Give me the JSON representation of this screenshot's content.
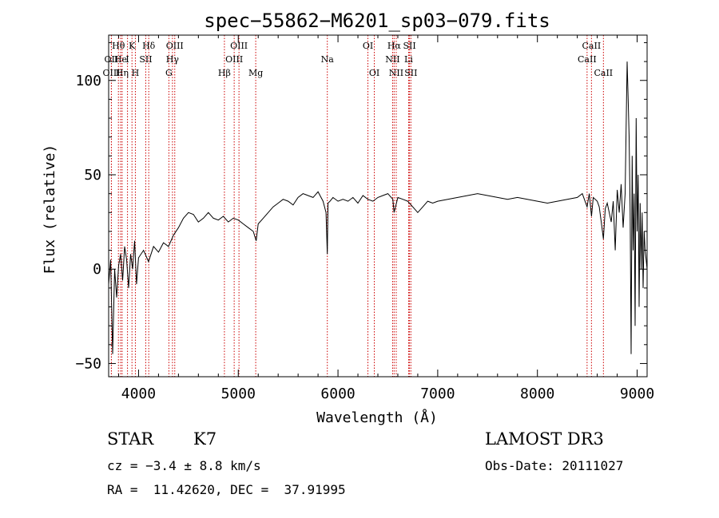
{
  "chart_data": {
    "type": "line",
    "title": "spec−55862−M6201_sp03−079.fits",
    "xlabel": "Wavelength (Å)",
    "ylabel": "Flux (relative)",
    "xlim": [
      3700,
      9100
    ],
    "ylim": [
      -57,
      124
    ],
    "xticks": [
      4000,
      5000,
      6000,
      7000,
      8000,
      9000
    ],
    "yticks": [
      -50,
      0,
      50,
      100
    ],
    "xtick_labels": [
      "4000",
      "5000",
      "6000",
      "7000",
      "8000",
      "9000"
    ],
    "ytick_labels": [
      "−50",
      "0",
      "50",
      "100"
    ],
    "series": [
      {
        "name": "spectrum",
        "color": "#000000",
        "x": [
          3700,
          3720,
          3740,
          3760,
          3780,
          3800,
          3820,
          3840,
          3860,
          3880,
          3900,
          3920,
          3940,
          3960,
          3980,
          4000,
          4050,
          4100,
          4150,
          4200,
          4250,
          4300,
          4350,
          4400,
          4450,
          4500,
          4550,
          4600,
          4650,
          4700,
          4750,
          4800,
          4850,
          4900,
          4950,
          5000,
          5050,
          5100,
          5150,
          5180,
          5200,
          5250,
          5300,
          5350,
          5400,
          5450,
          5500,
          5550,
          5600,
          5650,
          5700,
          5750,
          5800,
          5850,
          5880,
          5893,
          5900,
          5920,
          5950,
          6000,
          6050,
          6100,
          6150,
          6200,
          6250,
          6300,
          6350,
          6400,
          6450,
          6500,
          6550,
          6563,
          6600,
          6650,
          6700,
          6750,
          6800,
          6850,
          6900,
          6950,
          7000,
          7100,
          7200,
          7300,
          7400,
          7500,
          7600,
          7700,
          7800,
          7900,
          8000,
          8100,
          8200,
          8300,
          8400,
          8450,
          8498,
          8520,
          8542,
          8560,
          8600,
          8620,
          8640,
          8662,
          8680,
          8700,
          8720,
          8740,
          8760,
          8780,
          8800,
          8820,
          8840,
          8860,
          8880,
          8900,
          8910,
          8920,
          8930,
          8940,
          8950,
          8960,
          8970,
          8980,
          8990,
          9000,
          9010,
          9020,
          9030,
          9040,
          9050,
          9060,
          9070,
          9080,
          9090,
          9100
        ],
        "y": [
          -8,
          5,
          -45,
          0,
          -15,
          2,
          8,
          -6,
          12,
          5,
          -10,
          8,
          0,
          15,
          -8,
          6,
          10,
          4,
          12,
          9,
          14,
          12,
          18,
          22,
          27,
          30,
          29,
          25,
          27,
          30,
          27,
          26,
          28,
          25,
          27,
          26,
          24,
          22,
          20,
          15,
          24,
          27,
          30,
          33,
          35,
          37,
          36,
          34,
          38,
          40,
          39,
          38,
          41,
          36,
          30,
          8,
          35,
          36,
          38,
          36,
          37,
          36,
          38,
          35,
          39,
          37,
          36,
          38,
          39,
          40,
          37,
          30,
          38,
          37,
          36,
          33,
          30,
          33,
          36,
          35,
          36,
          37,
          38,
          39,
          40,
          39,
          38,
          37,
          38,
          37,
          36,
          35,
          36,
          37,
          38,
          40,
          33,
          40,
          28,
          38,
          36,
          33,
          25,
          16,
          32,
          35,
          30,
          25,
          36,
          10,
          42,
          30,
          45,
          22,
          40,
          110,
          90,
          70,
          30,
          -45,
          60,
          10,
          40,
          -30,
          80,
          20,
          50,
          -20,
          35,
          0,
          30,
          -10,
          20,
          10,
          5,
          0
        ]
      }
    ],
    "lines": [
      {
        "name": "Hθ",
        "wavelength": 3798,
        "row": 0
      },
      {
        "name": "OII",
        "wavelength": 3727,
        "row": 1
      },
      {
        "name": "OIII",
        "wavelength": 3728,
        "row": 2
      },
      {
        "name": "Hη",
        "wavelength": 3835,
        "row": 2
      },
      {
        "name": "He",
        "wavelength": 3820,
        "row": 1
      },
      {
        "name": "K",
        "wavelength": 3934,
        "row": 0
      },
      {
        "name": "SII",
        "wavelength": 4072,
        "row": 1
      },
      {
        "name": "H",
        "wavelength": 3968,
        "row": 2
      },
      {
        "name": "I",
        "wavelength": 3889,
        "row": 1
      },
      {
        "name": "Hδ",
        "wavelength": 4102,
        "row": 0
      },
      {
        "name": "OIII",
        "wavelength": 4363,
        "row": 0
      },
      {
        "name": "Hγ",
        "wavelength": 4340,
        "row": 1
      },
      {
        "name": "G",
        "wavelength": 4304,
        "row": 2
      },
      {
        "name": "Hβ",
        "wavelength": 4861,
        "row": 2
      },
      {
        "name": "OIII",
        "wavelength": 5007,
        "row": 0
      },
      {
        "name": "OIII",
        "wavelength": 4959,
        "row": 1
      },
      {
        "name": "Mg",
        "wavelength": 5175,
        "row": 2
      },
      {
        "name": "Na",
        "wavelength": 5893,
        "row": 1
      },
      {
        "name": "OI",
        "wavelength": 6300,
        "row": 0
      },
      {
        "name": "OI",
        "wavelength": 6364,
        "row": 2
      },
      {
        "name": "Hα",
        "wavelength": 6563,
        "row": 0
      },
      {
        "name": "NII",
        "wavelength": 6548,
        "row": 1
      },
      {
        "name": "NII",
        "wavelength": 6584,
        "row": 2
      },
      {
        "name": "SII",
        "wavelength": 6717,
        "row": 0
      },
      {
        "name": "Li",
        "wavelength": 6708,
        "row": 1
      },
      {
        "name": "SII",
        "wavelength": 6731,
        "row": 2
      },
      {
        "name": "CaII",
        "wavelength": 8542,
        "row": 0
      },
      {
        "name": "CaII",
        "wavelength": 8498,
        "row": 1
      },
      {
        "name": "CaII",
        "wavelength": 8662,
        "row": 2
      }
    ],
    "line_color": "#cc0000"
  },
  "info": {
    "class_label": "STAR",
    "subclass": "K7",
    "survey": "LAMOST DR3",
    "velocity": "cz = −3.4 ± 8.8 km/s",
    "obs_date": "Obs-Date: 20111027",
    "coords": "RA =  11.42620, DEC =  37.91995"
  }
}
